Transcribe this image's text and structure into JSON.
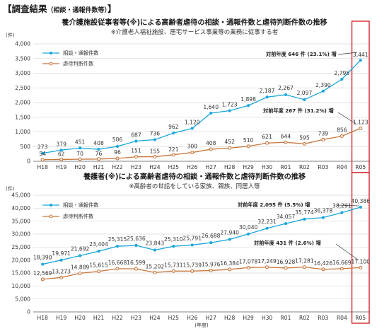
{
  "header": {
    "title": "【調査結果",
    "subtitle": "（相談・通報件数等）",
    "close": "】"
  },
  "colors": {
    "consult": "#1aa7dc",
    "judged": "#c8763a",
    "highlight": "#d6262b",
    "grid": "#d9d9d9"
  },
  "chart_data": [
    {
      "type": "line",
      "title": "養介護施設従事者等(※)による高齢者虐待の相談・通報件数と虐待判断件数の推移",
      "note": "※介護老人福祉施設、居宅サービス事業等の業務に従事する者",
      "yunit": "(件)",
      "xlabel": "",
      "ylim": [
        0,
        4000
      ],
      "yticks": [
        "0",
        "500",
        "1,000",
        "1,500",
        "2,000",
        "2,500",
        "3,000",
        "3,500",
        "4,000"
      ],
      "categories": [
        "H18",
        "H19",
        "H20",
        "H21",
        "H22",
        "H23",
        "H24",
        "H25",
        "H26",
        "H27",
        "H28",
        "H29",
        "H30",
        "R01",
        "R02",
        "R03",
        "R04",
        "R05"
      ],
      "series": [
        {
          "name": "相談・通報件数",
          "values": [
            273,
            379,
            451,
            408,
            506,
            687,
            736,
            962,
            1120,
            1640,
            1723,
            1898,
            2187,
            2267,
            2097,
            2390,
            2795,
            3441
          ],
          "labels": [
            "273",
            "379",
            "451",
            "408",
            "506",
            "687",
            "736",
            "962",
            "1,120",
            "1,640",
            "1,723",
            "1,898",
            "2,187",
            "2,267",
            "2,097",
            "2,390",
            "2,795",
            "3,441"
          ]
        },
        {
          "name": "虐待判断件数",
          "values": [
            54,
            62,
            70,
            76,
            96,
            151,
            155,
            221,
            300,
            408,
            452,
            510,
            621,
            644,
            595,
            739,
            856,
            1123
          ],
          "labels": [
            "54",
            "62",
            "70",
            "76",
            "96",
            "151",
            "155",
            "221",
            "300",
            "408",
            "452",
            "510",
            "621",
            "644",
            "595",
            "739",
            "856",
            "1,123"
          ]
        }
      ],
      "annotations": [
        "対前年度 646 件 (23.1%) 増",
        "対前年度 267 件 (31.2%) 増"
      ],
      "grid": true,
      "legend": "top-left",
      "highlight_category": "R05"
    },
    {
      "type": "line",
      "title": "養護者(※)による高齢者虐待の相談・通報件数と虐待判断件数の推移",
      "note": "※高齢者の世話をしている家族、親族、同居人等",
      "yunit": "(件)",
      "xlabel": "(年度)",
      "ylim": [
        0,
        45000
      ],
      "yticks": [
        "0",
        "5,000",
        "10,000",
        "15,000",
        "20,000",
        "25,000",
        "30,000",
        "35,000",
        "40,000",
        "45,000"
      ],
      "categories": [
        "H18",
        "H19",
        "H20",
        "H21",
        "H22",
        "H23",
        "H24",
        "H25",
        "H26",
        "H27",
        "H28",
        "H29",
        "H30",
        "R01",
        "R02",
        "R03",
        "R04",
        "R05"
      ],
      "series": [
        {
          "name": "相談・通報件数",
          "values": [
            18390,
            19971,
            21692,
            23404,
            25315,
            25636,
            23843,
            25310,
            25791,
            26688,
            27940,
            30040,
            32231,
            34057,
            35774,
            36378,
            38291,
            40386
          ],
          "labels": [
            "18,390",
            "19,971",
            "21,692",
            "23,404",
            "25,315",
            "25,636",
            "23,843",
            "25,310",
            "25,791",
            "26,688",
            "27,940",
            "30,040",
            "32,231",
            "34,057",
            "35,774",
            "36,378",
            "38,291",
            "40,386"
          ]
        },
        {
          "name": "虐待判断件数",
          "values": [
            12569,
            13273,
            14889,
            15615,
            16668,
            16599,
            15202,
            15731,
            15739,
            15976,
            16384,
            17078,
            17249,
            16928,
            17281,
            16426,
            16669,
            17100
          ],
          "labels": [
            "12,569",
            "13,273",
            "14,889",
            "15,615",
            "16,668",
            "16,599",
            "15,202",
            "15,731",
            "15,739",
            "15,976",
            "16,384",
            "17,078",
            "17,249",
            "16,928",
            "17,281",
            "16,426",
            "16,669",
            "17,100"
          ]
        }
      ],
      "annotations": [
        "対前年度 2,095 件 (5.5%) 増",
        "対前年度 431 件 (2.6%) 増"
      ],
      "grid": true,
      "legend": "top-left",
      "highlight_category": "R05"
    }
  ]
}
